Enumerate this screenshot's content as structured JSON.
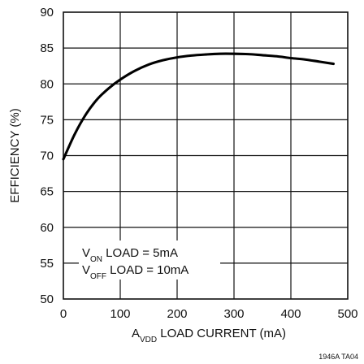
{
  "chart_data": {
    "type": "line",
    "title": "",
    "xlabel": {
      "main": "A",
      "sub": "VDD",
      "rest": " LOAD CURRENT (mA)"
    },
    "ylabel": "EFFICIENCY (%)",
    "xlim": [
      0,
      500
    ],
    "ylim": [
      50,
      90
    ],
    "x_ticks": [
      0,
      100,
      200,
      300,
      400,
      500
    ],
    "y_ticks": [
      50,
      55,
      60,
      65,
      70,
      75,
      80,
      85,
      90
    ],
    "grid": true,
    "series": [
      {
        "x": [
          0,
          20,
          40,
          60,
          80,
          100,
          125,
          150,
          175,
          200,
          225,
          250,
          275,
          300,
          325,
          350,
          375,
          400,
          425,
          450,
          475
        ],
        "y": [
          69.5,
          73.0,
          75.8,
          77.9,
          79.4,
          80.6,
          81.8,
          82.7,
          83.3,
          83.7,
          83.95,
          84.1,
          84.2,
          84.2,
          84.15,
          84.0,
          83.85,
          83.6,
          83.4,
          83.1,
          82.8
        ]
      }
    ],
    "annotations": [
      {
        "main": "V",
        "sub": "ON",
        "rest": " LOAD = 5mA"
      },
      {
        "main": "V",
        "sub": "OFF",
        "rest": " LOAD = 10mA"
      }
    ],
    "figure_id": "1946A TA04"
  }
}
